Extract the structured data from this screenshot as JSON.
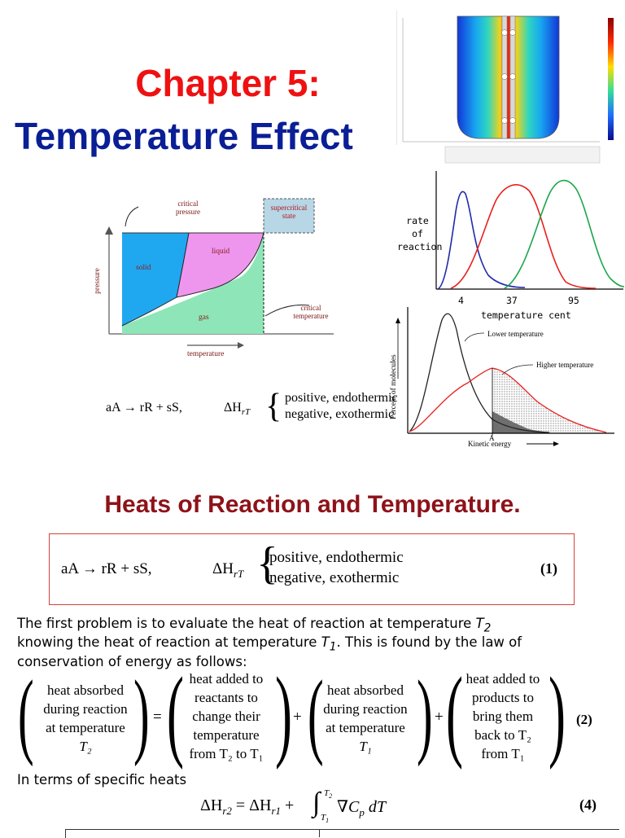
{
  "title": {
    "chapter": "Chapter 5:",
    "subject": "Temperature Effect"
  },
  "phase_diagram": {
    "critical_pressure": [
      "critical",
      "pressure"
    ],
    "supercritical_state": [
      "supercritical",
      "state"
    ],
    "solid": "solid",
    "liquid": "liquid",
    "gas": "gas",
    "critical_temperature": [
      "critical",
      "temperature"
    ],
    "x_label": "temperature",
    "y_label": "pressure"
  },
  "rate_chart": {
    "y_label": [
      "rate",
      "of",
      "reaction"
    ],
    "x_ticks": [
      "4",
      "37",
      "95"
    ],
    "x_label": "temperature cent",
    "colors": {
      "blue": "#1f2aa8",
      "red": "#e8201c",
      "green": "#1aa64a"
    }
  },
  "distribution_chart": {
    "y_label": "Percent of molecules",
    "x_label": "Kinetic energy",
    "lower": "Lower temperature",
    "higher": "Higher temperature",
    "marker": "A"
  },
  "reaction_eq": {
    "lhs": "aA → rR + sS,",
    "dh": "ΔH",
    "dh_sub": "rT",
    "pos": "positive, endothermic",
    "neg": "negative, exothermic",
    "number": "(1)"
  },
  "section_heading": "Heats of Reaction and Temperature.",
  "paragraph": {
    "line1_a": "The first problem is to evaluate the heat of reaction at temperature ",
    "t2": "T",
    "t2_sub": "2",
    "line2_a": "knowing the heat of reaction at temperature ",
    "t1": "T",
    "t1_sub": "1",
    "line2_b": ". This is found by the law of",
    "line3": "conservation of energy as follows:"
  },
  "energy_eq": {
    "box1": [
      "heat absorbed",
      "during reaction",
      "at temperature",
      "T₂"
    ],
    "box2": [
      "heat added to",
      "reactants to",
      "change their",
      "temperature",
      "from T₂ to T₁"
    ],
    "box3": [
      "heat absorbed",
      "during reaction",
      "at temperature",
      "T₁"
    ],
    "box4": [
      "heat added to",
      "products to",
      "bring them",
      "back to T₂",
      "from T₁"
    ],
    "eq": "=",
    "plus": "+",
    "number": "(2)"
  },
  "specific_heats": {
    "label": "In terms of specific heats",
    "equation": "ΔH",
    "number": "(4)"
  }
}
